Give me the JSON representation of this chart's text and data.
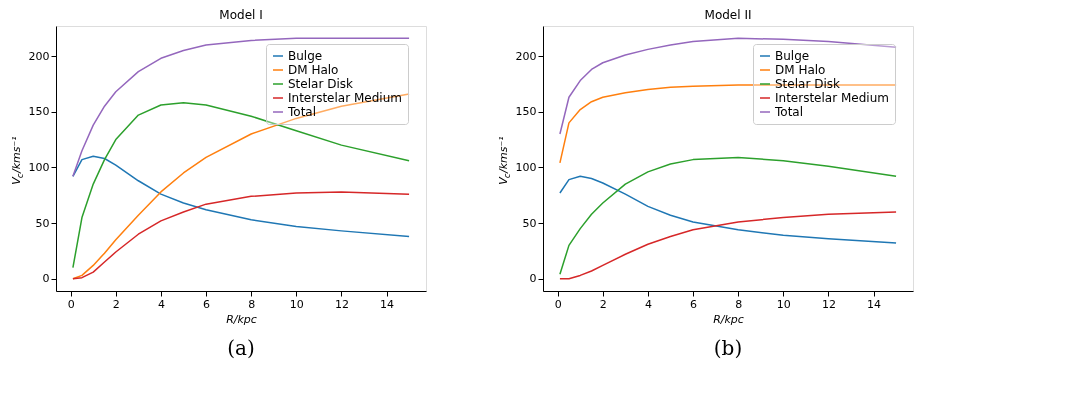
{
  "chart_data": [
    {
      "type": "line",
      "title": "Model I",
      "xlabel": "R/kpc",
      "ylabel": "V$_{c}$/kms⁻¹",
      "annotations": [
        "(a)"
      ],
      "x": [
        0.1,
        0.5,
        1,
        1.5,
        2,
        3,
        4,
        5,
        6,
        8,
        10,
        12,
        15
      ],
      "series": [
        {
          "name": "Bulge",
          "color": "#1f77b4",
          "values": [
            92,
            107,
            110,
            108,
            102,
            88,
            76,
            68,
            62,
            53,
            47,
            43,
            38
          ]
        },
        {
          "name": "DM Halo",
          "color": "#ff7f0e",
          "values": [
            0,
            3,
            12,
            23,
            35,
            57,
            78,
            95,
            109,
            130,
            144,
            155,
            166
          ]
        },
        {
          "name": "Stelar Disk",
          "color": "#2ca02c",
          "values": [
            10,
            55,
            85,
            107,
            125,
            147,
            156,
            158,
            156,
            146,
            133,
            120,
            106
          ]
        },
        {
          "name": "Interstelar Medium",
          "color": "#d62728",
          "values": [
            0,
            1,
            6,
            15,
            24,
            40,
            52,
            60,
            67,
            74,
            77,
            78,
            76
          ]
        },
        {
          "name": "Total",
          "color": "#9467bd",
          "values": [
            92,
            115,
            138,
            155,
            168,
            186,
            198,
            205,
            210,
            214,
            216,
            216,
            216
          ]
        }
      ],
      "xlim": [
        -0.65,
        15.75
      ],
      "ylim": [
        -11,
        227
      ],
      "xticks": [
        0,
        2,
        4,
        6,
        8,
        10,
        12,
        14
      ],
      "yticks": [
        0,
        50,
        100,
        150,
        200
      ],
      "legend": "top right"
    },
    {
      "type": "line",
      "title": "Model II",
      "xlabel": "R/kpc",
      "ylabel": "V$_{c}$/kms⁻¹",
      "annotations": [
        "(b)"
      ],
      "x": [
        0.1,
        0.5,
        1,
        1.5,
        2,
        3,
        4,
        5,
        6,
        8,
        10,
        12,
        15
      ],
      "series": [
        {
          "name": "Bulge",
          "color": "#1f77b4",
          "values": [
            77,
            89,
            92,
            90,
            86,
            76,
            65,
            57,
            51,
            44,
            39,
            36,
            32
          ]
        },
        {
          "name": "DM Halo",
          "color": "#ff7f0e",
          "values": [
            104,
            140,
            152,
            159,
            163,
            167,
            170,
            172,
            173,
            174,
            174,
            174,
            174
          ]
        },
        {
          "name": "Stelar Disk",
          "color": "#2ca02c",
          "values": [
            4,
            30,
            45,
            58,
            68,
            85,
            96,
            103,
            107,
            109,
            106,
            101,
            92
          ]
        },
        {
          "name": "Interstelar Medium",
          "color": "#d62728",
          "values": [
            0,
            0,
            3,
            7,
            12,
            22,
            31,
            38,
            44,
            51,
            55,
            58,
            60
          ]
        },
        {
          "name": "Total",
          "color": "#9467bd",
          "values": [
            130,
            163,
            178,
            188,
            194,
            201,
            206,
            210,
            213,
            216,
            215,
            213,
            208
          ]
        }
      ],
      "xlim": [
        -0.65,
        15.75
      ],
      "ylim": [
        -11,
        227
      ],
      "xticks": [
        0,
        2,
        4,
        6,
        8,
        10,
        12,
        14
      ],
      "yticks": [
        0,
        50,
        100,
        150,
        200
      ],
      "legend": "top right"
    }
  ]
}
